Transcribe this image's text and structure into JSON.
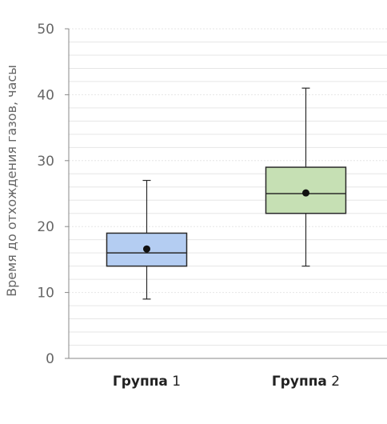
{
  "chart_data": {
    "type": "box",
    "ylabel": "Время до отхождения газов, часы",
    "ylim": [
      0,
      50
    ],
    "yticks": [
      0,
      10,
      20,
      30,
      40,
      50
    ],
    "grid": true,
    "categories": [
      {
        "word": "Группа",
        "num": "1"
      },
      {
        "word": "Группа",
        "num": "2"
      }
    ],
    "boxes": [
      {
        "whisker_low": 9,
        "q1": 14,
        "median": 16,
        "q3": 19,
        "whisker_high": 27,
        "mean": 16.6,
        "color": "#b4cdf2",
        "edge": "#2a2a2a"
      },
      {
        "whisker_low": 14,
        "q1": 22,
        "median": 25,
        "q3": 29,
        "whisker_high": 41,
        "mean": 25.1,
        "color": "#c6e0b4",
        "edge": "#2a2a2a"
      }
    ]
  }
}
